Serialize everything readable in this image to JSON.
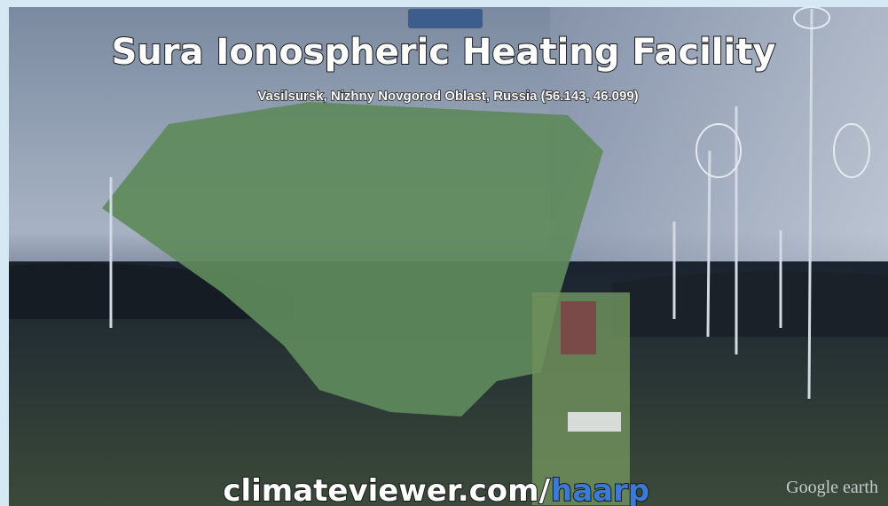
{
  "header": {
    "title": "Sura Ionospheric Heating Facility",
    "subtitle": "Vasilsursk, Nizhny Novgorod Oblast, Russia (56.143, 46.099)"
  },
  "footer": {
    "site": "climateviewer.com/",
    "path": "haarp",
    "watermark": "Google earth"
  }
}
